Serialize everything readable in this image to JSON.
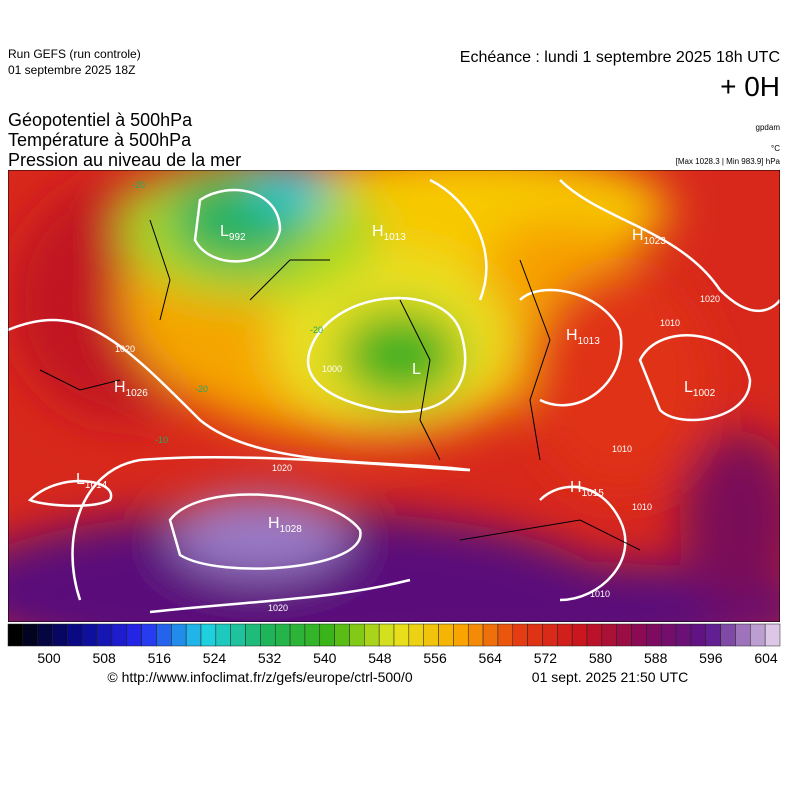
{
  "header": {
    "run": "Run GEFS (run controle)",
    "date": "01 septembre 2025 18Z",
    "echeance": "Echéance : lundi 1 septembre 2025 18h UTC",
    "offset": "+ 0H",
    "titles": [
      "Géopotentiel à 500hPa",
      "Température à 500hPa",
      "Pression au niveau de la mer"
    ],
    "units": [
      "gpdam",
      "°C",
      "[Max 1028.3 | Min 983.9] hPa"
    ]
  },
  "map": {
    "centers": [
      {
        "type": "H",
        "value": "1013"
      },
      {
        "type": "L",
        "value": "992"
      },
      {
        "type": "H",
        "value": "1023"
      },
      {
        "type": "H",
        "value": "1013"
      },
      {
        "type": "L",
        "value": "1002"
      },
      {
        "type": "H",
        "value": "1026"
      },
      {
        "type": "L",
        "value": "1014"
      },
      {
        "type": "H",
        "value": "1028"
      },
      {
        "type": "H",
        "value": "1015"
      },
      {
        "type": "L"
      }
    ],
    "contour_labels": [
      "1020",
      "1020",
      "1010",
      "1010",
      "1000",
      "1010",
      "1010",
      "1020",
      "1020",
      "-20",
      "-20",
      "-20",
      "-10"
    ]
  },
  "colorbar": {
    "ticks": [
      "500",
      "508",
      "516",
      "524",
      "532",
      "540",
      "548",
      "556",
      "564",
      "572",
      "580",
      "588",
      "596",
      "604"
    ]
  },
  "footer": {
    "url": "© http://www.infoclimat.fr/z/gefs/europe/ctrl-500/0",
    "timestamp": "01 sept. 2025 21:50 UTC"
  }
}
